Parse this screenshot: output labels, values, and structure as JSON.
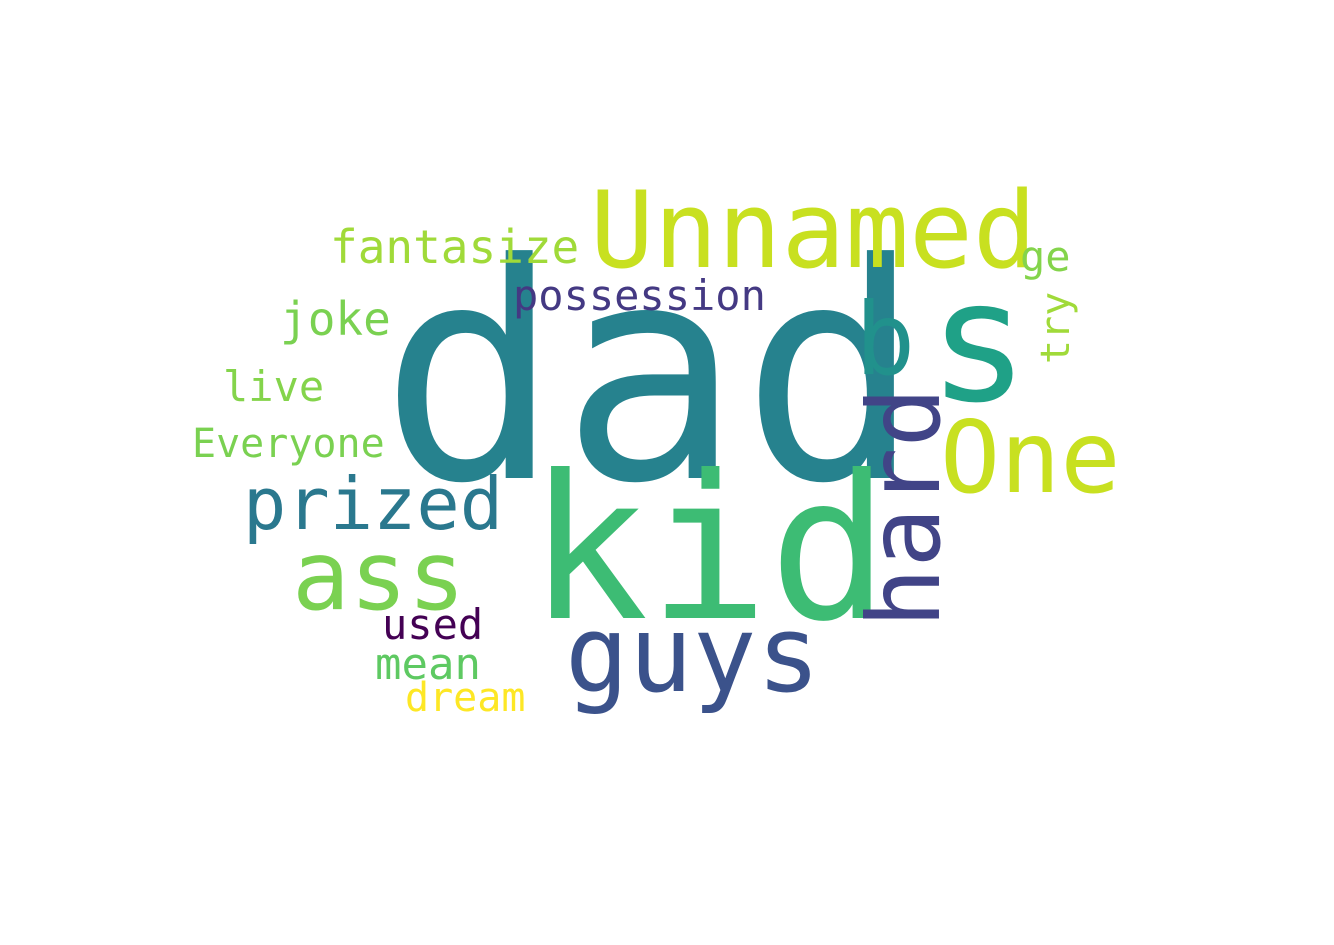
{
  "words": [
    {
      "text": "dad",
      "color": "#26828e"
    },
    {
      "text": "kid",
      "color": "#3dbc74"
    },
    {
      "text": "s",
      "color": "#1fa187"
    },
    {
      "text": "Unnamed",
      "color": "#c8e020"
    },
    {
      "text": "One",
      "color": "#c8e020"
    },
    {
      "text": "b",
      "color": "#21918c"
    },
    {
      "text": "hard",
      "color": "#414487"
    },
    {
      "text": "guys",
      "color": "#3b528b"
    },
    {
      "text": "prized",
      "color": "#2a788e"
    },
    {
      "text": "ass",
      "color": "#7ad151"
    },
    {
      "text": "possession",
      "color": "#443983"
    },
    {
      "text": "fantasize",
      "color": "#a0da39"
    },
    {
      "text": "ge",
      "color": "#84d44b"
    },
    {
      "text": "try",
      "color": "#a0da39"
    },
    {
      "text": "joke",
      "color": "#7ad151"
    },
    {
      "text": "live",
      "color": "#84d44b"
    },
    {
      "text": "Everyone",
      "color": "#7ad151"
    },
    {
      "text": "used",
      "color": "#440154"
    },
    {
      "text": "mean",
      "color": "#5ec962"
    },
    {
      "text": "dream",
      "color": "#fde725"
    }
  ]
}
